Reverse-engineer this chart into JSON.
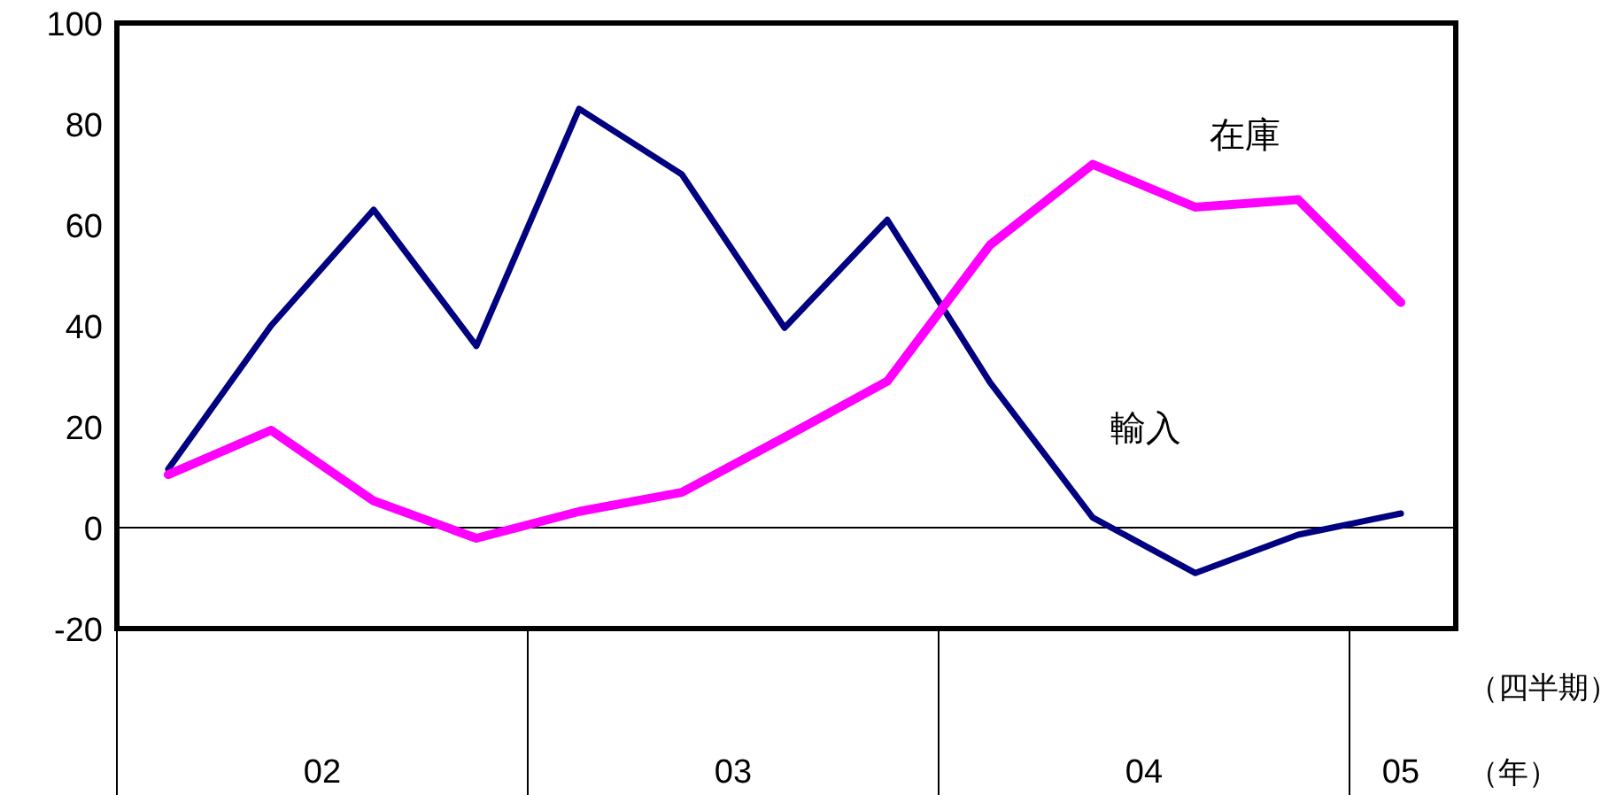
{
  "chart_data": {
    "type": "line",
    "categories": [
      null,
      null,
      null,
      null,
      null,
      null,
      null,
      null,
      null,
      null,
      null,
      null,
      null
    ],
    "series": [
      {
        "name": "輸入",
        "color": "#000080",
        "values": [
          11.6,
          40,
          63,
          36,
          83,
          70,
          39.6,
          61,
          28.8,
          2,
          -9,
          -1.4,
          2.8
        ]
      },
      {
        "name": "在庫",
        "color": "#ff00ff",
        "values": [
          10.5,
          19.3,
          5.3,
          -2.1,
          3.2,
          7,
          17.9,
          29,
          56,
          72,
          63.5,
          65,
          44.6
        ]
      }
    ],
    "ylim": [
      -20,
      100
    ],
    "yticks": [
      -20,
      0,
      20,
      40,
      60,
      80,
      100
    ],
    "ref_lines": [
      {
        "axis": "y",
        "value": 0
      }
    ],
    "annotations": [
      "02",
      "03",
      "04",
      "05",
      "（四半期）",
      "（年）"
    ],
    "grid": false,
    "marker": "none",
    "line_style": "solid"
  }
}
